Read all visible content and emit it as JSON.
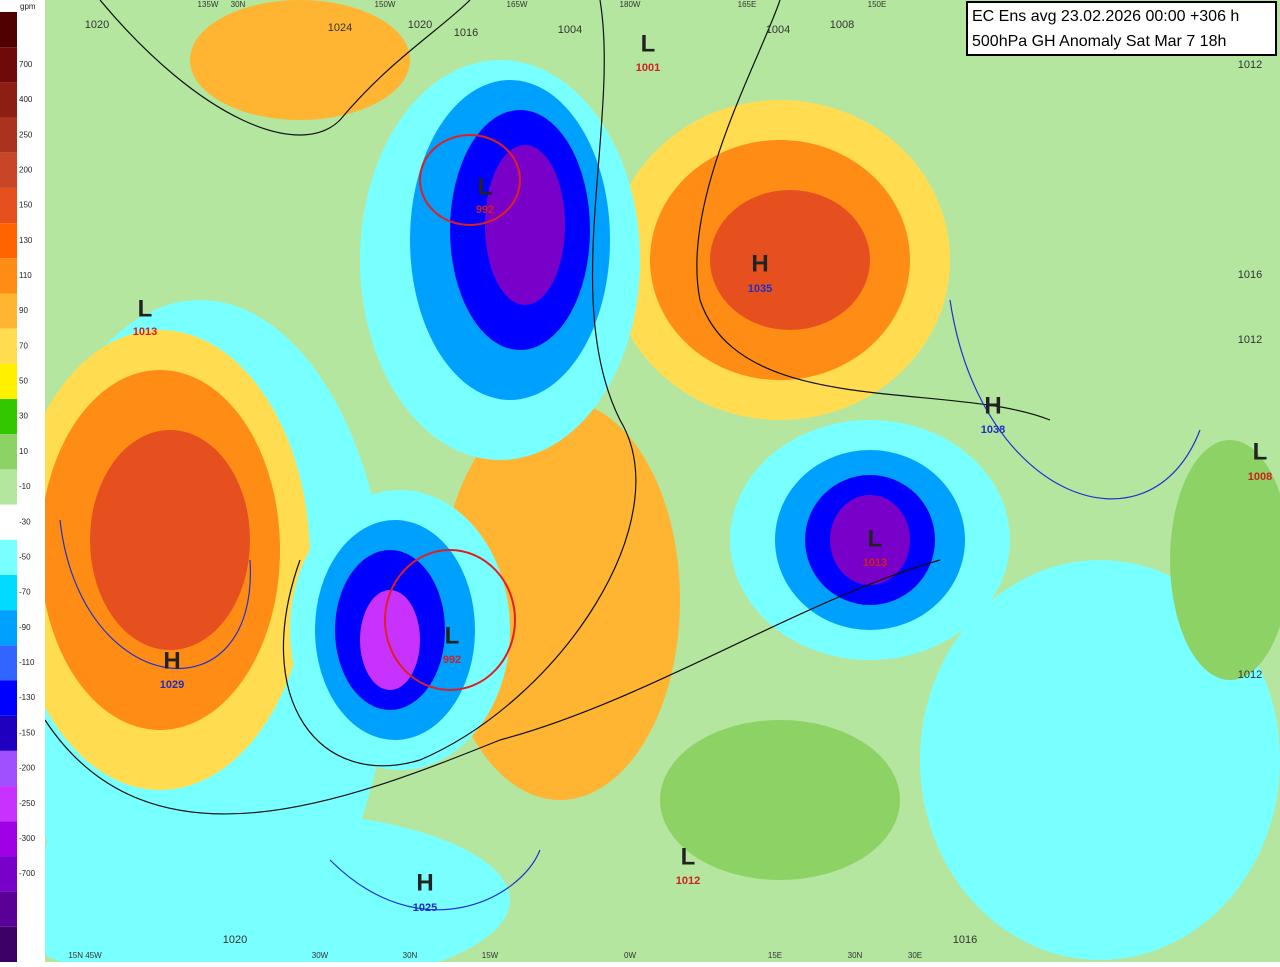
{
  "title": [
    "EC Ens avg 23.02.2026 00:00 +306 h",
    "500hPa GH Anomaly Sat Mar 7 18h"
  ],
  "legend": {
    "unit": "gpm",
    "labels": [
      "700",
      "400",
      "250",
      "200",
      "150",
      "130",
      "110",
      "90",
      "70",
      "50",
      "30",
      "10",
      "-10",
      "-30",
      "-50",
      "-70",
      "-90",
      "-110",
      "-130",
      "-150",
      "-200",
      "-250",
      "-300",
      "-700"
    ],
    "colors": [
      "#500000",
      "#6e0a0a",
      "#8c1e14",
      "#aa321e",
      "#c84628",
      "#e6501e",
      "#ff6400",
      "#ff8c14",
      "#ffb432",
      "#ffdc50",
      "#fff000",
      "#32c800",
      "#8cd264",
      "#b4e6a0",
      "#ffffff",
      "#78ffff",
      "#00dcff",
      "#00a0ff",
      "#3264ff",
      "#0000ff",
      "#1e00be",
      "#a050ff",
      "#c832ff",
      "#a000e6",
      "#7800c8",
      "#5a0096",
      "#3c0064"
    ]
  },
  "centers": [
    {
      "type": "L",
      "value": "1001"
    },
    {
      "type": "L",
      "value": "992"
    },
    {
      "type": "H",
      "value": "1035"
    },
    {
      "type": "L",
      "value": "1013"
    },
    {
      "type": "H",
      "value": "1038"
    },
    {
      "type": "L",
      "value": "1008"
    },
    {
      "type": "L",
      "value": "1013"
    },
    {
      "type": "L",
      "value": "992"
    },
    {
      "type": "H",
      "value": "1029"
    },
    {
      "type": "H",
      "value": "1025"
    },
    {
      "type": "L",
      "value": "1012"
    }
  ],
  "isobars": [
    "1020",
    "1024",
    "1020",
    "1016",
    "1004",
    "1004",
    "1008",
    "1012",
    "1016",
    "1012",
    "1012",
    "1016",
    "1020"
  ],
  "lon_top": [
    "135W",
    "30N",
    "150W",
    "165W",
    "180W",
    "165E",
    "150E"
  ],
  "lon_bottom": [
    "15N 45W",
    "30W",
    "30N",
    "15W",
    "0W",
    "15E",
    "30N",
    "30E"
  ]
}
